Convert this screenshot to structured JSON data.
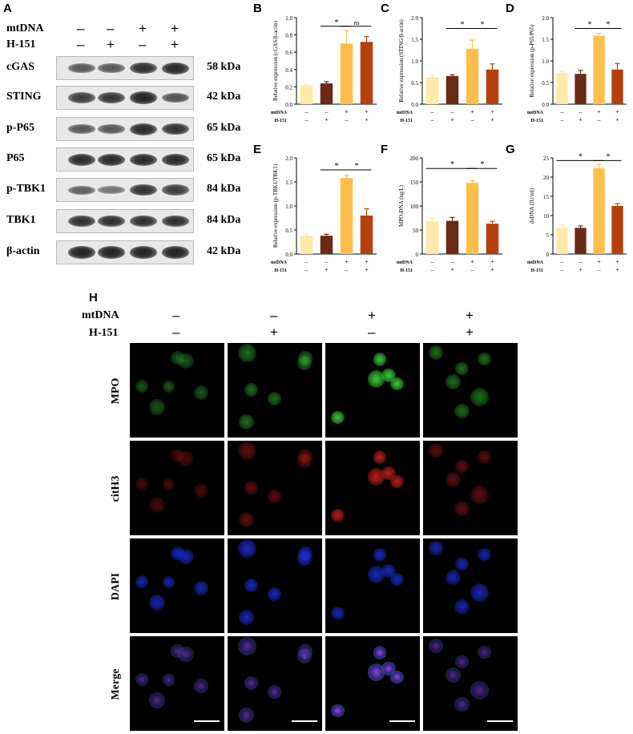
{
  "panel_letters": {
    "A": "A",
    "B": "B",
    "C": "C",
    "D": "D",
    "E": "E",
    "F": "F",
    "G": "G",
    "H": "H"
  },
  "western_blot": {
    "row_labels": [
      "mtDNA",
      "H-151"
    ],
    "conditions": [
      {
        "mtDNA": "–",
        "h151": "–"
      },
      {
        "mtDNA": "–",
        "h151": "+"
      },
      {
        "mtDNA": "+",
        "h151": "–"
      },
      {
        "mtDNA": "+",
        "h151": "+"
      }
    ],
    "proteins": [
      {
        "name": "cGAS",
        "kda": "58 kDa",
        "intensity": [
          0.55,
          0.55,
          0.85,
          0.9
        ]
      },
      {
        "name": "STING",
        "kda": "42 kDa",
        "intensity": [
          0.75,
          0.8,
          0.95,
          0.6
        ]
      },
      {
        "name": "p-P65",
        "kda": "65 kDa",
        "intensity": [
          0.55,
          0.55,
          0.9,
          0.85
        ]
      },
      {
        "name": "P65",
        "kda": "65 kDa",
        "intensity": [
          0.9,
          0.9,
          0.9,
          0.9
        ]
      },
      {
        "name": "p-TBK1",
        "kda": "84 kDa",
        "intensity": [
          0.5,
          0.35,
          0.85,
          0.75
        ]
      },
      {
        "name": "TBK1",
        "kda": "84 kDa",
        "intensity": [
          0.85,
          0.85,
          0.85,
          0.85
        ]
      },
      {
        "name": "β-actin",
        "kda": "42 kDa",
        "intensity": [
          0.95,
          0.95,
          0.95,
          0.95
        ]
      }
    ]
  },
  "colors": [
    "#fde9a8",
    "#6b2a14",
    "#fdbf4a",
    "#b5400e"
  ],
  "x_condition_labels": {
    "row1_label": "mtDNA",
    "row2_label": "H-151",
    "row1": [
      "–",
      "–",
      "+",
      "+"
    ],
    "row2": [
      "–",
      "+",
      "–",
      "+"
    ]
  },
  "chart_data": [
    {
      "panel": "B",
      "type": "bar",
      "ylabel": "Relative expression (cGAS/β-actin)",
      "ylim": [
        0,
        1.0
      ],
      "yticks": [
        "0.0",
        "0.2",
        "0.4",
        "0.6",
        "0.8",
        "1.0"
      ],
      "yticks_values": [
        0,
        0.2,
        0.4,
        0.6,
        0.8,
        1.0
      ],
      "values": [
        0.22,
        0.24,
        0.7,
        0.72
      ],
      "errors": [
        0.01,
        0.02,
        0.15,
        0.06
      ],
      "sig": [
        {
          "from": 1,
          "to": 2,
          "label": "*",
          "y": 0.9
        },
        {
          "from": 2,
          "to": 3,
          "label": "ns",
          "y": 0.9
        }
      ]
    },
    {
      "panel": "C",
      "type": "bar",
      "ylabel": "Relative expression (STING/β-actin)",
      "ylim": [
        0,
        2.0
      ],
      "yticks": [
        "0.0",
        "0.5",
        "1.0",
        "1.5",
        "2.0"
      ],
      "yticks_values": [
        0,
        0.5,
        1.0,
        1.5,
        2.0
      ],
      "values": [
        0.62,
        0.65,
        1.28,
        0.8
      ],
      "errors": [
        0.05,
        0.03,
        0.2,
        0.13
      ],
      "sig": [
        {
          "from": 1,
          "to": 2,
          "label": "*",
          "y": 1.75
        },
        {
          "from": 2,
          "to": 3,
          "label": "*",
          "y": 1.75
        }
      ]
    },
    {
      "panel": "D",
      "type": "bar",
      "ylabel": "Relative expression (p-P65/P65)",
      "ylim": [
        0,
        2.0
      ],
      "yticks": [
        "0.0",
        "0.5",
        "1.0",
        "1.5",
        "2.0"
      ],
      "yticks_values": [
        0,
        0.5,
        1.0,
        1.5,
        2.0
      ],
      "values": [
        0.72,
        0.7,
        1.58,
        0.8
      ],
      "errors": [
        0.03,
        0.08,
        0.06,
        0.14
      ],
      "sig": [
        {
          "from": 1,
          "to": 2,
          "label": "*",
          "y": 1.75
        },
        {
          "from": 2,
          "to": 3,
          "label": "*",
          "y": 1.75
        }
      ]
    },
    {
      "panel": "E",
      "type": "bar",
      "ylabel": "Relative expression (p-TBK1/TBK1)",
      "ylim": [
        0,
        2.0
      ],
      "yticks": [
        "0.0",
        "0.5",
        "1.0",
        "1.5",
        "2.0"
      ],
      "yticks_values": [
        0,
        0.5,
        1.0,
        1.5,
        2.0
      ],
      "values": [
        0.38,
        0.38,
        1.58,
        0.8
      ],
      "errors": [
        0.04,
        0.03,
        0.06,
        0.14
      ],
      "sig": [
        {
          "from": 1,
          "to": 2,
          "label": "*",
          "y": 1.75
        },
        {
          "from": 2,
          "to": 3,
          "label": "*",
          "y": 1.75
        }
      ]
    },
    {
      "panel": "F",
      "type": "bar",
      "ylabel": "MPO-DNA (ng/L)",
      "ylim": [
        0,
        200
      ],
      "yticks": [
        "0",
        "50",
        "100",
        "150",
        "200"
      ],
      "yticks_values": [
        0,
        50,
        100,
        150,
        200
      ],
      "values": [
        68,
        69,
        148,
        63
      ],
      "errors": [
        6,
        7,
        5,
        5
      ],
      "sig": [
        {
          "from": 0,
          "to": 2,
          "label": "*",
          "y": 178
        },
        {
          "from": 2,
          "to": 3,
          "label": "*",
          "y": 178
        }
      ]
    },
    {
      "panel": "G",
      "type": "bar",
      "ylabel": "dsDNA (IU/ml)",
      "ylim": [
        0,
        25
      ],
      "yticks": [
        "0",
        "5",
        "10",
        "15",
        "20",
        "25"
      ],
      "yticks_values": [
        0,
        5,
        10,
        15,
        20,
        25
      ],
      "values": [
        6.8,
        6.8,
        22.3,
        12.5
      ],
      "errors": [
        0.8,
        0.5,
        1.1,
        0.6
      ],
      "sig": [
        {
          "from": 0,
          "to": 2,
          "label": "*",
          "y": 24.3
        },
        {
          "from": 2,
          "to": 3,
          "label": "*",
          "y": 24.3
        }
      ]
    }
  ],
  "panel_h": {
    "row1_label": "mtDNA",
    "row2_label": "H-151",
    "col_signs_mtdna": [
      "–",
      "–",
      "+",
      "+"
    ],
    "col_signs_h151": [
      "–",
      "+",
      "–",
      "+"
    ],
    "rows": [
      "MPO",
      "citH3",
      "DAPI",
      "Merge"
    ],
    "stain_colors": {
      "MPO": "#38c838",
      "citH3": "#d02020",
      "DAPI": "#2030e0"
    }
  }
}
